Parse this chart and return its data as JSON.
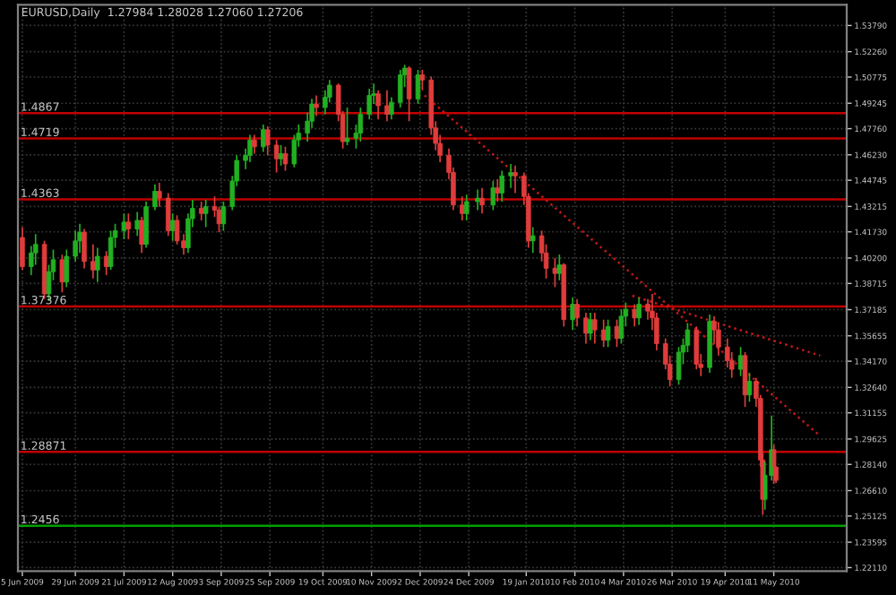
{
  "chart_data": {
    "type": "candlestick",
    "title": "EURUSD,Daily  1.27984 1.28028 1.27060 1.27206",
    "x": [
      "2009-06-05",
      "2009-06-09",
      "2009-06-11",
      "2009-06-15",
      "2009-06-17",
      "2009-06-19",
      "2009-06-23",
      "2009-06-25",
      "2009-06-29",
      "2009-07-01",
      "2009-07-03",
      "2009-07-07",
      "2009-07-09",
      "2009-07-13",
      "2009-07-15",
      "2009-07-17",
      "2009-07-21",
      "2009-07-23",
      "2009-07-27",
      "2009-07-29",
      "2009-07-31",
      "2009-08-04",
      "2009-08-06",
      "2009-08-10",
      "2009-08-12",
      "2009-08-14",
      "2009-08-17",
      "2009-08-19",
      "2009-08-21",
      "2009-08-25",
      "2009-08-27",
      "2009-08-31",
      "2009-09-02",
      "2009-09-04",
      "2009-09-08",
      "2009-09-10",
      "2009-09-14",
      "2009-09-16",
      "2009-09-18",
      "2009-09-22",
      "2009-09-24",
      "2009-09-28",
      "2009-09-30",
      "2009-10-02",
      "2009-10-06",
      "2009-10-08",
      "2009-10-12",
      "2009-10-14",
      "2009-10-16",
      "2009-10-20",
      "2009-10-22",
      "2009-10-26",
      "2009-10-28",
      "2009-10-30",
      "2009-11-03",
      "2009-11-05",
      "2009-11-09",
      "2009-11-11",
      "2009-11-13",
      "2009-11-17",
      "2009-11-19",
      "2009-11-23",
      "2009-11-25",
      "2009-11-27",
      "2009-12-01",
      "2009-12-03",
      "2009-12-07",
      "2009-12-09",
      "2009-12-11",
      "2009-12-15",
      "2009-12-17",
      "2009-12-21",
      "2009-12-23",
      "2009-12-28",
      "2009-12-30",
      "2010-01-04",
      "2010-01-06",
      "2010-01-08",
      "2010-01-12",
      "2010-01-14",
      "2010-01-18",
      "2010-01-20",
      "2010-01-22",
      "2010-01-26",
      "2010-01-28",
      "2010-02-01",
      "2010-02-03",
      "2010-02-05",
      "2010-02-09",
      "2010-02-11",
      "2010-02-15",
      "2010-02-17",
      "2010-02-19",
      "2010-02-23",
      "2010-02-25",
      "2010-03-01",
      "2010-03-03",
      "2010-03-05",
      "2010-03-09",
      "2010-03-11",
      "2010-03-15",
      "2010-03-17",
      "2010-03-19",
      "2010-03-23",
      "2010-03-25",
      "2010-03-29",
      "2010-03-31",
      "2010-04-02",
      "2010-04-06",
      "2010-04-08",
      "2010-04-12",
      "2010-04-14",
      "2010-04-16",
      "2010-04-20",
      "2010-04-22",
      "2010-04-26",
      "2010-04-28",
      "2010-04-30",
      "2010-05-03",
      "2010-05-05",
      "2010-05-06",
      "2010-05-07",
      "2010-05-10",
      "2010-05-11",
      "2010-05-12"
    ],
    "ohlc": [
      [
        1.414,
        1.42,
        1.395,
        1.397
      ],
      [
        1.397,
        1.409,
        1.392,
        1.405
      ],
      [
        1.405,
        1.416,
        1.398,
        1.41
      ],
      [
        1.41,
        1.412,
        1.378,
        1.381
      ],
      [
        1.381,
        1.398,
        1.377,
        1.394
      ],
      [
        1.394,
        1.407,
        1.389,
        1.401
      ],
      [
        1.401,
        1.404,
        1.382,
        1.388
      ],
      [
        1.388,
        1.407,
        1.385,
        1.403
      ],
      [
        1.403,
        1.418,
        1.4,
        1.412
      ],
      [
        1.412,
        1.422,
        1.405,
        1.417
      ],
      [
        1.417,
        1.419,
        1.396,
        1.4
      ],
      [
        1.4,
        1.41,
        1.39,
        1.395
      ],
      [
        1.395,
        1.408,
        1.388,
        1.403
      ],
      [
        1.403,
        1.406,
        1.392,
        1.397
      ],
      [
        1.397,
        1.418,
        1.395,
        1.414
      ],
      [
        1.414,
        1.422,
        1.408,
        1.418
      ],
      [
        1.418,
        1.428,
        1.413,
        1.423
      ],
      [
        1.423,
        1.428,
        1.413,
        1.419
      ],
      [
        1.419,
        1.429,
        1.415,
        1.424
      ],
      [
        1.424,
        1.426,
        1.405,
        1.41
      ],
      [
        1.41,
        1.435,
        1.408,
        1.432
      ],
      [
        1.432,
        1.445,
        1.43,
        1.441
      ],
      [
        1.441,
        1.446,
        1.432,
        1.437
      ],
      [
        1.437,
        1.44,
        1.415,
        1.418
      ],
      [
        1.418,
        1.428,
        1.412,
        1.424
      ],
      [
        1.424,
        1.427,
        1.41,
        1.412
      ],
      [
        1.412,
        1.416,
        1.404,
        1.408
      ],
      [
        1.408,
        1.428,
        1.405,
        1.425
      ],
      [
        1.425,
        1.436,
        1.42,
        1.431
      ],
      [
        1.431,
        1.435,
        1.424,
        1.428
      ],
      [
        1.428,
        1.436,
        1.42,
        1.432
      ],
      [
        1.432,
        1.438,
        1.426,
        1.43
      ],
      [
        1.43,
        1.432,
        1.417,
        1.422
      ],
      [
        1.422,
        1.435,
        1.418,
        1.432
      ],
      [
        1.432,
        1.45,
        1.43,
        1.447
      ],
      [
        1.447,
        1.462,
        1.444,
        1.459
      ],
      [
        1.459,
        1.466,
        1.454,
        1.462
      ],
      [
        1.462,
        1.474,
        1.458,
        1.471
      ],
      [
        1.471,
        1.474,
        1.463,
        1.467
      ],
      [
        1.467,
        1.48,
        1.464,
        1.477
      ],
      [
        1.477,
        1.479,
        1.462,
        1.468
      ],
      [
        1.468,
        1.471,
        1.452,
        1.46
      ],
      [
        1.46,
        1.468,
        1.456,
        1.463
      ],
      [
        1.463,
        1.467,
        1.453,
        1.457
      ],
      [
        1.457,
        1.474,
        1.455,
        1.471
      ],
      [
        1.471,
        1.48,
        1.467,
        1.475
      ],
      [
        1.475,
        1.487,
        1.47,
        1.482
      ],
      [
        1.482,
        1.495,
        1.478,
        1.492
      ],
      [
        1.492,
        1.497,
        1.485,
        1.49
      ],
      [
        1.49,
        1.5,
        1.486,
        1.496
      ],
      [
        1.496,
        1.506,
        1.493,
        1.503
      ],
      [
        1.503,
        1.504,
        1.482,
        1.486
      ],
      [
        1.486,
        1.488,
        1.466,
        1.47
      ],
      [
        1.47,
        1.49,
        1.468,
        1.472
      ],
      [
        1.472,
        1.48,
        1.466,
        1.475
      ],
      [
        1.475,
        1.49,
        1.47,
        1.486
      ],
      [
        1.486,
        1.501,
        1.483,
        1.497
      ],
      [
        1.497,
        1.504,
        1.492,
        1.498
      ],
      [
        1.498,
        1.5,
        1.483,
        1.491
      ],
      [
        1.491,
        1.5,
        1.482,
        1.486
      ],
      [
        1.486,
        1.496,
        1.483,
        1.493
      ],
      [
        1.493,
        1.512,
        1.49,
        1.509
      ],
      [
        1.509,
        1.515,
        1.502,
        1.513
      ],
      [
        1.513,
        1.514,
        1.482,
        1.495
      ],
      [
        1.495,
        1.512,
        1.492,
        1.509
      ],
      [
        1.509,
        1.512,
        1.5,
        1.506
      ],
      [
        1.506,
        1.508,
        1.474,
        1.478
      ],
      [
        1.478,
        1.482,
        1.465,
        1.469
      ],
      [
        1.469,
        1.474,
        1.458,
        1.462
      ],
      [
        1.462,
        1.466,
        1.448,
        1.452
      ],
      [
        1.452,
        1.455,
        1.43,
        1.433
      ],
      [
        1.433,
        1.438,
        1.424,
        1.428
      ],
      [
        1.428,
        1.439,
        1.424,
        1.435
      ],
      [
        1.435,
        1.442,
        1.43,
        1.437
      ],
      [
        1.437,
        1.443,
        1.428,
        1.433
      ],
      [
        1.433,
        1.447,
        1.43,
        1.443
      ],
      [
        1.443,
        1.448,
        1.435,
        1.44
      ],
      [
        1.44,
        1.453,
        1.435,
        1.45
      ],
      [
        1.45,
        1.457,
        1.443,
        1.452
      ],
      [
        1.452,
        1.456,
        1.44,
        1.45
      ],
      [
        1.45,
        1.452,
        1.433,
        1.438
      ],
      [
        1.438,
        1.44,
        1.408,
        1.412
      ],
      [
        1.412,
        1.42,
        1.405,
        1.415
      ],
      [
        1.415,
        1.418,
        1.4,
        1.405
      ],
      [
        1.405,
        1.41,
        1.39,
        1.396
      ],
      [
        1.396,
        1.402,
        1.385,
        1.393
      ],
      [
        1.393,
        1.404,
        1.389,
        1.398
      ],
      [
        1.398,
        1.399,
        1.362,
        1.366
      ],
      [
        1.366,
        1.379,
        1.36,
        1.375
      ],
      [
        1.375,
        1.378,
        1.362,
        1.367
      ],
      [
        1.367,
        1.37,
        1.352,
        1.358
      ],
      [
        1.358,
        1.37,
        1.354,
        1.366
      ],
      [
        1.366,
        1.37,
        1.352,
        1.36
      ],
      [
        1.36,
        1.366,
        1.35,
        1.354
      ],
      [
        1.354,
        1.366,
        1.35,
        1.362
      ],
      [
        1.362,
        1.366,
        1.35,
        1.355
      ],
      [
        1.355,
        1.372,
        1.352,
        1.368
      ],
      [
        1.368,
        1.376,
        1.362,
        1.372
      ],
      [
        1.372,
        1.375,
        1.362,
        1.367
      ],
      [
        1.367,
        1.379,
        1.363,
        1.375
      ],
      [
        1.375,
        1.378,
        1.366,
        1.371
      ],
      [
        1.371,
        1.381,
        1.36,
        1.367
      ],
      [
        1.367,
        1.37,
        1.348,
        1.352
      ],
      [
        1.352,
        1.355,
        1.337,
        1.34
      ],
      [
        1.34,
        1.345,
        1.327,
        1.331
      ],
      [
        1.331,
        1.35,
        1.328,
        1.347
      ],
      [
        1.347,
        1.355,
        1.34,
        1.351
      ],
      [
        1.351,
        1.364,
        1.347,
        1.36
      ],
      [
        1.36,
        1.362,
        1.337,
        1.34
      ],
      [
        1.34,
        1.346,
        1.333,
        1.338
      ],
      [
        1.338,
        1.369,
        1.335,
        1.365
      ],
      [
        1.365,
        1.368,
        1.352,
        1.36
      ],
      [
        1.36,
        1.364,
        1.345,
        1.35
      ],
      [
        1.35,
        1.355,
        1.338,
        1.342
      ],
      [
        1.342,
        1.347,
        1.332,
        1.337
      ],
      [
        1.337,
        1.35,
        1.333,
        1.345
      ],
      [
        1.345,
        1.347,
        1.315,
        1.322
      ],
      [
        1.322,
        1.335,
        1.318,
        1.33
      ],
      [
        1.33,
        1.332,
        1.315,
        1.32
      ],
      [
        1.32,
        1.322,
        1.28,
        1.284
      ],
      [
        1.284,
        1.288,
        1.252,
        1.261
      ],
      [
        1.261,
        1.283,
        1.255,
        1.275
      ],
      [
        1.275,
        1.31,
        1.272,
        1.29
      ],
      [
        1.29,
        1.293,
        1.27,
        1.28
      ],
      [
        1.27984,
        1.28028,
        1.2706,
        1.27206
      ]
    ],
    "colors": [
      "#e03c3c",
      "#22b022",
      "#22b022",
      "#e03c3c",
      "#22b022",
      "#22b022",
      "#e03c3c",
      "#22b022",
      "#22b022",
      "#22b022",
      "#e03c3c",
      "#e03c3c",
      "#22b022",
      "#e03c3c",
      "#22b022",
      "#22b022",
      "#22b022",
      "#e03c3c",
      "#22b022",
      "#e03c3c",
      "#22b022",
      "#22b022",
      "#e03c3c",
      "#e03c3c",
      "#22b022",
      "#e03c3c",
      "#e03c3c",
      "#22b022",
      "#22b022",
      "#e03c3c",
      "#22b022",
      "#e03c3c",
      "#e03c3c",
      "#22b022",
      "#22b022",
      "#22b022",
      "#22b022",
      "#22b022",
      "#e03c3c",
      "#22b022",
      "#e03c3c",
      "#e03c3c",
      "#22b022",
      "#e03c3c",
      "#22b022",
      "#22b022",
      "#22b022",
      "#22b022",
      "#e03c3c",
      "#22b022",
      "#22b022",
      "#e03c3c",
      "#e03c3c",
      "#22b022",
      "#22b022",
      "#22b022",
      "#22b022",
      "#22b022",
      "#e03c3c",
      "#e03c3c",
      "#22b022",
      "#22b022",
      "#22b022",
      "#e03c3c",
      "#22b022",
      "#e03c3c",
      "#e03c3c",
      "#e03c3c",
      "#e03c3c",
      "#e03c3c",
      "#e03c3c",
      "#e03c3c",
      "#22b022",
      "#22b022",
      "#e03c3c",
      "#22b022",
      "#e03c3c",
      "#22b022",
      "#22b022",
      "#e03c3c",
      "#e03c3c",
      "#e03c3c",
      "#22b022",
      "#e03c3c",
      "#e03c3c",
      "#e03c3c",
      "#22b022",
      "#e03c3c",
      "#22b022",
      "#e03c3c",
      "#e03c3c",
      "#22b022",
      "#e03c3c",
      "#e03c3c",
      "#22b022",
      "#e03c3c",
      "#22b022",
      "#22b022",
      "#e03c3c",
      "#22b022",
      "#e03c3c",
      "#e03c3c",
      "#e03c3c",
      "#e03c3c",
      "#e03c3c",
      "#22b022",
      "#22b022",
      "#22b022",
      "#e03c3c",
      "#e03c3c",
      "#22b022",
      "#e03c3c",
      "#e03c3c",
      "#e03c3c",
      "#e03c3c",
      "#22b022",
      "#e03c3c",
      "#22b022",
      "#e03c3c",
      "#e03c3c",
      "#e03c3c",
      "#22b022",
      "#22b022",
      "#e03c3c",
      "#e03c3c"
    ],
    "series": [
      {
        "type": "line",
        "color": "#c01818",
        "line_style": "dotted",
        "x": [
          "2009-12-04",
          "2010-06-01"
        ],
        "values": [
          1.497,
          1.298
        ]
      },
      {
        "type": "line",
        "color": "#c01818",
        "line_style": "dotted",
        "x": [
          "2010-03-08",
          "2010-06-01"
        ],
        "values": [
          1.38,
          1.345
        ]
      }
    ],
    "ref_lines": [
      {
        "axis": "y",
        "value": 1.4867,
        "label": "1.4867",
        "color": "#c00000"
      },
      {
        "axis": "y",
        "value": 1.4719,
        "label": "1.4719",
        "color": "#c00000"
      },
      {
        "axis": "y",
        "value": 1.4363,
        "label": "1.4363",
        "color": "#c00000"
      },
      {
        "axis": "y",
        "value": 1.37376,
        "label": "1.37376",
        "color": "#c00000"
      },
      {
        "axis": "y",
        "value": 1.28871,
        "label": "1.28871",
        "color": "#c00000"
      },
      {
        "axis": "y",
        "value": 1.2456,
        "label": "1.2456",
        "color": "#00a000"
      }
    ],
    "xlim": [
      "2009-06-03",
      "2010-06-13"
    ],
    "xticks": [
      {
        "value": "2009-06-05",
        "label": "5 Jun 2009"
      },
      {
        "value": "2009-06-29",
        "label": "29 Jun 2009"
      },
      {
        "value": "2009-07-21",
        "label": "21 Jul 2009"
      },
      {
        "value": "2009-08-12",
        "label": "12 Aug 2009"
      },
      {
        "value": "2009-09-03",
        "label": "3 Sep 2009"
      },
      {
        "value": "2009-09-25",
        "label": "25 Sep 2009"
      },
      {
        "value": "2009-10-19",
        "label": "19 Oct 2009"
      },
      {
        "value": "2009-11-10",
        "label": "10 Nov 2009"
      },
      {
        "value": "2009-12-02",
        "label": "2 Dec 2009"
      },
      {
        "value": "2009-12-24",
        "label": "24 Dec 2009"
      },
      {
        "value": "2010-01-19",
        "label": "19 Jan 2010"
      },
      {
        "value": "2010-02-10",
        "label": "10 Feb 2010"
      },
      {
        "value": "2010-03-04",
        "label": "4 Mar 2010"
      },
      {
        "value": "2010-03-26",
        "label": "26 Mar 2010"
      },
      {
        "value": "2010-04-19",
        "label": "19 Apr 2010"
      },
      {
        "value": "2010-05-11",
        "label": "11 May 2010"
      }
    ],
    "ylim": [
      1.219,
      1.55
    ],
    "yticks": [
      {
        "value": 1.5379,
        "label": "1.53790"
      },
      {
        "value": 1.5226,
        "label": "1.52260"
      },
      {
        "value": 1.50775,
        "label": "1.50775"
      },
      {
        "value": 1.49245,
        "label": "1.49245"
      },
      {
        "value": 1.4776,
        "label": "1.47760"
      },
      {
        "value": 1.4623,
        "label": "1.46230"
      },
      {
        "value": 1.44745,
        "label": "1.44745"
      },
      {
        "value": 1.43215,
        "label": "1.43215"
      },
      {
        "value": 1.4173,
        "label": "1.41730"
      },
      {
        "value": 1.402,
        "label": "1.40200"
      },
      {
        "value": 1.38715,
        "label": "1.38715"
      },
      {
        "value": 1.37185,
        "label": "1.37185"
      },
      {
        "value": 1.35655,
        "label": "1.35655"
      },
      {
        "value": 1.3417,
        "label": "1.34170"
      },
      {
        "value": 1.3264,
        "label": "1.32640"
      },
      {
        "value": 1.31155,
        "label": "1.31155"
      },
      {
        "value": 1.29625,
        "label": "1.29625"
      },
      {
        "value": 1.2814,
        "label": "1.28140"
      },
      {
        "value": 1.2661,
        "label": "1.26610"
      },
      {
        "value": 1.25125,
        "label": "1.25125"
      },
      {
        "value": 1.23595,
        "label": "1.23595"
      },
      {
        "value": 1.2211,
        "label": "1.22110"
      }
    ],
    "grid": true
  }
}
